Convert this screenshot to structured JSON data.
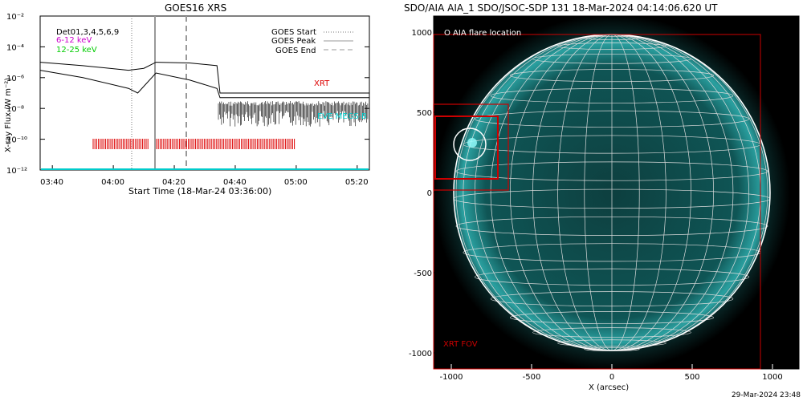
{
  "goes": {
    "title": "GOES16 XRS",
    "ylabel": "X-ray Flux (W m⁻²)",
    "xlabel": "Start Time (18-Mar-24 03:36:00)",
    "y_ticks": [
      "10⁻²",
      "10⁻⁴",
      "10⁻⁶",
      "10⁻⁸",
      "10⁻¹⁰",
      "10⁻¹²"
    ],
    "x_ticks": [
      "03:40",
      "04:00",
      "04:20",
      "04:40",
      "05:00",
      "05:20"
    ],
    "channel_label": "Det01,3,4,5,6,9",
    "band1": "6-12 keV",
    "band2": "12-25 keV",
    "legend_start": "GOES Start",
    "legend_peak": "GOES Peak",
    "legend_end": "GOES End",
    "xrt_label": "XRT",
    "eve_label": "EVE MEGS-B",
    "colors": {
      "band1": "#cc00cc",
      "band2": "#00cc00",
      "xrt": "#dd0000",
      "eve": "#00cccc"
    }
  },
  "aia": {
    "title": "SDO/AIA AIA_1 SDO/JSOC-SDP 131 18-Mar-2024 04:14:06.620 UT",
    "flare_label": "O AIA flare location",
    "fov_label": "XRT FOV",
    "xlabel": "X (arcsec)",
    "y_ticks": [
      "1000",
      "500",
      "0",
      "-500",
      "-1000"
    ],
    "x_ticks": [
      "-1000",
      "-500",
      "0",
      "500",
      "1000"
    ],
    "colors": {
      "fov": "#cc0000",
      "disk": "#0a4a4a"
    }
  },
  "footer": "29-Mar-2024 23:48",
  "chart_data": {
    "type": "line",
    "title": "GOES16 XRS",
    "xlabel": "Start Time (18-Mar-24 03:36:00)",
    "ylabel": "X-ray Flux (W m⁻²)",
    "yscale": "log",
    "ylim": [
      1e-12,
      0.01
    ],
    "series": [
      {
        "name": "6-12 keV",
        "x": [
          "03:36",
          "03:50",
          "04:05",
          "04:10",
          "04:14",
          "04:25",
          "04:34",
          "04:35",
          "05:24"
        ],
        "values": [
          1e-05,
          6e-06,
          3e-06,
          4e-06,
          1e-05,
          9e-06,
          6e-06,
          1e-07,
          1e-07
        ]
      },
      {
        "name": "12-25 keV",
        "x": [
          "03:36",
          "03:50",
          "04:05",
          "04:08",
          "04:14",
          "04:25",
          "04:34",
          "04:35",
          "05:24"
        ],
        "values": [
          3e-06,
          1e-06,
          2e-07,
          1e-07,
          2e-06,
          7e-07,
          2e-07,
          5e-08,
          5e-08
        ]
      }
    ]
  }
}
